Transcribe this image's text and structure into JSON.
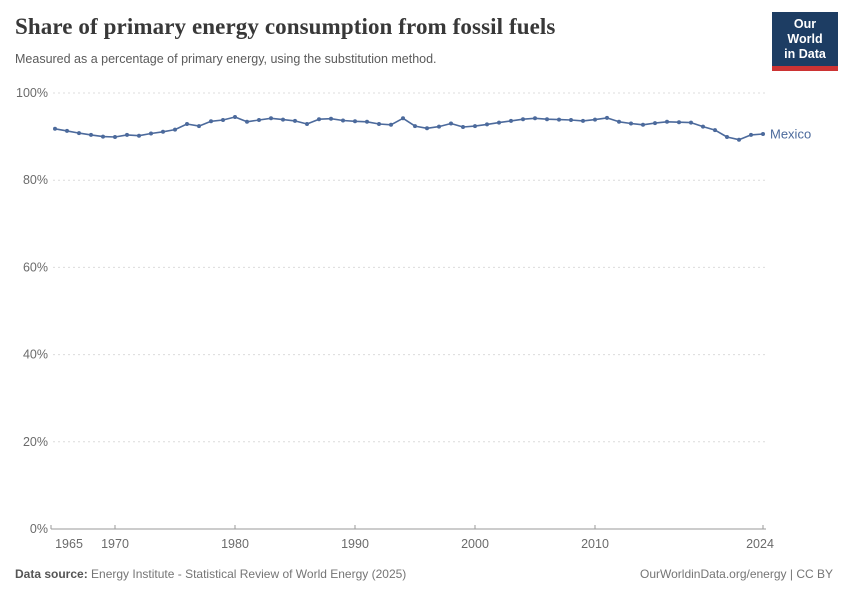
{
  "header": {
    "title": "Share of primary energy consumption from fossil fuels",
    "subtitle": "Measured as a percentage of primary energy, using the substitution method.",
    "logo_line1": "Our World",
    "logo_line2": "in Data"
  },
  "chart_data": {
    "type": "line",
    "title": "Share of primary energy consumption from fossil fuels",
    "xlabel": "",
    "ylabel": "",
    "ylim": [
      0,
      100
    ],
    "yticks": [
      0,
      20,
      40,
      60,
      80,
      100
    ],
    "ytick_suffix": "%",
    "xticks": [
      1965,
      1970,
      1980,
      1990,
      2000,
      2010,
      2024
    ],
    "xlim": [
      1965,
      2024
    ],
    "grid": "horizontal-dashed",
    "legend_position": "end-of-line",
    "series": [
      {
        "name": "Mexico",
        "color": "#4C6A9C",
        "x": [
          1965,
          1966,
          1967,
          1968,
          1969,
          1970,
          1971,
          1972,
          1973,
          1974,
          1975,
          1976,
          1977,
          1978,
          1979,
          1980,
          1981,
          1982,
          1983,
          1984,
          1985,
          1986,
          1987,
          1988,
          1989,
          1990,
          1991,
          1992,
          1993,
          1994,
          1995,
          1996,
          1997,
          1998,
          1999,
          2000,
          2001,
          2002,
          2003,
          2004,
          2005,
          2006,
          2007,
          2008,
          2009,
          2010,
          2011,
          2012,
          2013,
          2014,
          2015,
          2016,
          2017,
          2018,
          2019,
          2020,
          2021,
          2022,
          2023,
          2024
        ],
        "values": [
          91.8,
          91.3,
          90.8,
          90.4,
          90.0,
          89.9,
          90.4,
          90.2,
          90.7,
          91.1,
          91.6,
          92.9,
          92.4,
          93.5,
          93.8,
          94.5,
          93.4,
          93.8,
          94.2,
          93.9,
          93.6,
          92.9,
          94.0,
          94.1,
          93.7,
          93.5,
          93.4,
          92.9,
          92.7,
          94.2,
          92.4,
          91.9,
          92.3,
          93.0,
          92.2,
          92.4,
          92.8,
          93.2,
          93.6,
          94.0,
          94.2,
          94.0,
          93.9,
          93.8,
          93.6,
          93.9,
          94.3,
          93.4,
          93.0,
          92.7,
          93.1,
          93.4,
          93.3,
          93.2,
          92.3,
          91.5,
          89.9,
          89.3,
          90.4,
          90.6
        ]
      }
    ]
  },
  "footer": {
    "source_label": "Data source:",
    "source_text": " Energy Institute - Statistical Review of World Energy (2025)",
    "credit": "OurWorldinData.org/energy | CC BY"
  },
  "colors": {
    "line": "#4C6A9C",
    "grid": "#dcdcdc",
    "axis": "#9a9a9a",
    "tick_label": "#6b6b6b",
    "logo_bg": "#1d3d63",
    "logo_bar": "#cc3333"
  }
}
